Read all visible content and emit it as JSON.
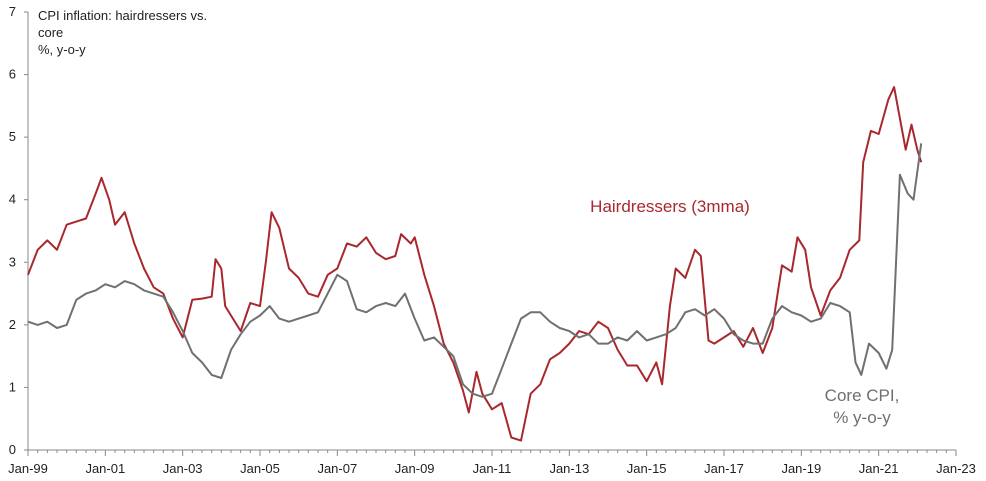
{
  "chart_data": {
    "type": "line",
    "title_lines": [
      "CPI inflation: hairdressers vs.",
      "core",
      "%, y-o-y"
    ],
    "xlabel": "",
    "ylabel": "",
    "ylim": [
      0,
      7
    ],
    "yticks": [
      "0",
      "1",
      "2",
      "3",
      "4",
      "5",
      "6",
      "7"
    ],
    "xlim": [
      1999.0,
      2023.0
    ],
    "xticks": [
      {
        "label": "Jan-99",
        "x": 1999.0
      },
      {
        "label": "Jan-01",
        "x": 2001.0
      },
      {
        "label": "Jan-03",
        "x": 2003.0
      },
      {
        "label": "Jan-05",
        "x": 2005.0
      },
      {
        "label": "Jan-07",
        "x": 2007.0
      },
      {
        "label": "Jan-09",
        "x": 2009.0
      },
      {
        "label": "Jan-11",
        "x": 2011.0
      },
      {
        "label": "Jan-13",
        "x": 2013.0
      },
      {
        "label": "Jan-15",
        "x": 2015.0
      },
      {
        "label": "Jan-17",
        "x": 2017.0
      },
      {
        "label": "Jan-19",
        "x": 2019.0
      },
      {
        "label": "Jan-21",
        "x": 2021.0
      },
      {
        "label": "Jan-23",
        "x": 2023.0
      }
    ],
    "grid": false,
    "series": [
      {
        "name": "Hairdressers (3mma)",
        "color": "#a8282d",
        "label_lines": [
          "Hairdressers (3mma)"
        ],
        "points": [
          [
            1999.0,
            2.8
          ],
          [
            1999.25,
            3.2
          ],
          [
            1999.5,
            3.35
          ],
          [
            1999.75,
            3.2
          ],
          [
            2000.0,
            3.6
          ],
          [
            2000.25,
            3.65
          ],
          [
            2000.5,
            3.7
          ],
          [
            2000.75,
            4.1
          ],
          [
            2000.9,
            4.35
          ],
          [
            2001.1,
            4.0
          ],
          [
            2001.25,
            3.6
          ],
          [
            2001.5,
            3.8
          ],
          [
            2001.75,
            3.3
          ],
          [
            2002.0,
            2.9
          ],
          [
            2002.25,
            2.6
          ],
          [
            2002.5,
            2.5
          ],
          [
            2002.75,
            2.1
          ],
          [
            2003.0,
            1.8
          ],
          [
            2003.25,
            2.4
          ],
          [
            2003.5,
            2.42
          ],
          [
            2003.75,
            2.45
          ],
          [
            2003.85,
            3.05
          ],
          [
            2004.0,
            2.9
          ],
          [
            2004.1,
            2.3
          ],
          [
            2004.5,
            1.9
          ],
          [
            2004.75,
            2.35
          ],
          [
            2005.0,
            2.3
          ],
          [
            2005.15,
            3.0
          ],
          [
            2005.3,
            3.8
          ],
          [
            2005.5,
            3.55
          ],
          [
            2005.75,
            2.9
          ],
          [
            2006.0,
            2.75
          ],
          [
            2006.25,
            2.5
          ],
          [
            2006.5,
            2.45
          ],
          [
            2006.75,
            2.8
          ],
          [
            2007.0,
            2.9
          ],
          [
            2007.25,
            3.3
          ],
          [
            2007.5,
            3.25
          ],
          [
            2007.75,
            3.4
          ],
          [
            2008.0,
            3.15
          ],
          [
            2008.25,
            3.05
          ],
          [
            2008.5,
            3.1
          ],
          [
            2008.65,
            3.45
          ],
          [
            2008.9,
            3.3
          ],
          [
            2009.0,
            3.4
          ],
          [
            2009.25,
            2.8
          ],
          [
            2009.5,
            2.3
          ],
          [
            2009.75,
            1.7
          ],
          [
            2010.0,
            1.4
          ],
          [
            2010.25,
            0.95
          ],
          [
            2010.4,
            0.6
          ],
          [
            2010.6,
            1.25
          ],
          [
            2010.75,
            0.9
          ],
          [
            2011.0,
            0.65
          ],
          [
            2011.25,
            0.75
          ],
          [
            2011.5,
            0.2
          ],
          [
            2011.75,
            0.15
          ],
          [
            2012.0,
            0.9
          ],
          [
            2012.25,
            1.05
          ],
          [
            2012.5,
            1.45
          ],
          [
            2012.75,
            1.55
          ],
          [
            2013.0,
            1.7
          ],
          [
            2013.25,
            1.9
          ],
          [
            2013.5,
            1.85
          ],
          [
            2013.75,
            2.05
          ],
          [
            2014.0,
            1.95
          ],
          [
            2014.25,
            1.6
          ],
          [
            2014.5,
            1.35
          ],
          [
            2014.75,
            1.35
          ],
          [
            2015.0,
            1.1
          ],
          [
            2015.25,
            1.4
          ],
          [
            2015.4,
            1.05
          ],
          [
            2015.6,
            2.3
          ],
          [
            2015.75,
            2.9
          ],
          [
            2016.0,
            2.75
          ],
          [
            2016.25,
            3.2
          ],
          [
            2016.4,
            3.1
          ],
          [
            2016.6,
            1.75
          ],
          [
            2016.75,
            1.7
          ],
          [
            2017.0,
            1.8
          ],
          [
            2017.25,
            1.9
          ],
          [
            2017.5,
            1.65
          ],
          [
            2017.75,
            1.95
          ],
          [
            2018.0,
            1.55
          ],
          [
            2018.25,
            1.95
          ],
          [
            2018.5,
            2.95
          ],
          [
            2018.75,
            2.85
          ],
          [
            2018.9,
            3.4
          ],
          [
            2019.1,
            3.2
          ],
          [
            2019.25,
            2.6
          ],
          [
            2019.5,
            2.15
          ],
          [
            2019.75,
            2.55
          ],
          [
            2020.0,
            2.75
          ],
          [
            2020.25,
            3.2
          ],
          [
            2020.5,
            3.35
          ],
          [
            2020.6,
            4.6
          ],
          [
            2020.8,
            5.1
          ],
          [
            2021.0,
            5.05
          ],
          [
            2021.25,
            5.6
          ],
          [
            2021.4,
            5.8
          ],
          [
            2021.55,
            5.3
          ],
          [
            2021.7,
            4.8
          ],
          [
            2021.85,
            5.2
          ],
          [
            2022.0,
            4.8
          ],
          [
            2022.1,
            4.6
          ]
        ]
      },
      {
        "name": "Core CPI, % y-o-y",
        "color": "#707070",
        "label_lines": [
          "Core CPI,",
          "% y-o-y"
        ],
        "points": [
          [
            1999.0,
            2.05
          ],
          [
            1999.25,
            2.0
          ],
          [
            1999.5,
            2.05
          ],
          [
            1999.75,
            1.95
          ],
          [
            2000.0,
            2.0
          ],
          [
            2000.25,
            2.4
          ],
          [
            2000.5,
            2.5
          ],
          [
            2000.75,
            2.55
          ],
          [
            2001.0,
            2.65
          ],
          [
            2001.25,
            2.6
          ],
          [
            2001.5,
            2.7
          ],
          [
            2001.75,
            2.65
          ],
          [
            2002.0,
            2.55
          ],
          [
            2002.25,
            2.5
          ],
          [
            2002.5,
            2.45
          ],
          [
            2002.75,
            2.2
          ],
          [
            2003.0,
            1.9
          ],
          [
            2003.25,
            1.55
          ],
          [
            2003.5,
            1.4
          ],
          [
            2003.75,
            1.2
          ],
          [
            2004.0,
            1.15
          ],
          [
            2004.25,
            1.6
          ],
          [
            2004.5,
            1.85
          ],
          [
            2004.75,
            2.05
          ],
          [
            2005.0,
            2.15
          ],
          [
            2005.25,
            2.3
          ],
          [
            2005.5,
            2.1
          ],
          [
            2005.75,
            2.05
          ],
          [
            2006.0,
            2.1
          ],
          [
            2006.25,
            2.15
          ],
          [
            2006.5,
            2.2
          ],
          [
            2006.75,
            2.5
          ],
          [
            2007.0,
            2.8
          ],
          [
            2007.25,
            2.7
          ],
          [
            2007.5,
            2.25
          ],
          [
            2007.75,
            2.2
          ],
          [
            2008.0,
            2.3
          ],
          [
            2008.25,
            2.35
          ],
          [
            2008.5,
            2.3
          ],
          [
            2008.75,
            2.5
          ],
          [
            2009.0,
            2.1
          ],
          [
            2009.25,
            1.75
          ],
          [
            2009.5,
            1.8
          ],
          [
            2009.75,
            1.65
          ],
          [
            2010.0,
            1.5
          ],
          [
            2010.25,
            1.05
          ],
          [
            2010.5,
            0.9
          ],
          [
            2010.75,
            0.85
          ],
          [
            2011.0,
            0.9
          ],
          [
            2011.25,
            1.3
          ],
          [
            2011.5,
            1.7
          ],
          [
            2011.75,
            2.1
          ],
          [
            2012.0,
            2.2
          ],
          [
            2012.25,
            2.2
          ],
          [
            2012.5,
            2.05
          ],
          [
            2012.75,
            1.95
          ],
          [
            2013.0,
            1.9
          ],
          [
            2013.25,
            1.8
          ],
          [
            2013.5,
            1.85
          ],
          [
            2013.75,
            1.7
          ],
          [
            2014.0,
            1.7
          ],
          [
            2014.25,
            1.8
          ],
          [
            2014.5,
            1.75
          ],
          [
            2014.75,
            1.9
          ],
          [
            2015.0,
            1.75
          ],
          [
            2015.25,
            1.8
          ],
          [
            2015.5,
            1.85
          ],
          [
            2015.75,
            1.95
          ],
          [
            2016.0,
            2.2
          ],
          [
            2016.25,
            2.25
          ],
          [
            2016.5,
            2.15
          ],
          [
            2016.75,
            2.25
          ],
          [
            2017.0,
            2.1
          ],
          [
            2017.25,
            1.85
          ],
          [
            2017.5,
            1.75
          ],
          [
            2017.75,
            1.7
          ],
          [
            2018.0,
            1.7
          ],
          [
            2018.25,
            2.1
          ],
          [
            2018.5,
            2.3
          ],
          [
            2018.75,
            2.2
          ],
          [
            2019.0,
            2.15
          ],
          [
            2019.25,
            2.05
          ],
          [
            2019.5,
            2.1
          ],
          [
            2019.75,
            2.35
          ],
          [
            2020.0,
            2.3
          ],
          [
            2020.25,
            2.2
          ],
          [
            2020.4,
            1.4
          ],
          [
            2020.55,
            1.2
          ],
          [
            2020.75,
            1.7
          ],
          [
            2021.0,
            1.55
          ],
          [
            2021.2,
            1.3
          ],
          [
            2021.35,
            1.6
          ],
          [
            2021.55,
            4.4
          ],
          [
            2021.75,
            4.1
          ],
          [
            2021.9,
            4.0
          ],
          [
            2022.1,
            4.9
          ]
        ]
      }
    ]
  }
}
